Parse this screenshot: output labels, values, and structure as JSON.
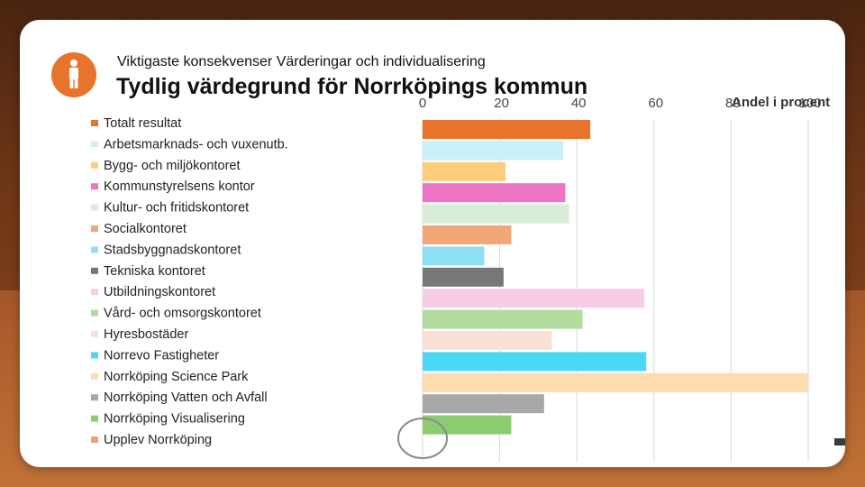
{
  "header": {
    "subtitle": "Viktigaste konsekvenser Värderingar och individualisering",
    "title": "Tydlig värdegrund för Norrköpings kommun"
  },
  "icons": {
    "badge": "person-icon"
  },
  "colors": {
    "badge": "#e8732a",
    "background": "#7a3d18"
  },
  "chart_data": {
    "type": "bar",
    "orientation": "horizontal",
    "title": "Tydlig värdegrund för Norrköpings kommun",
    "xlabel": "Andel i procent",
    "xlim": [
      0,
      100
    ],
    "ticks": [
      "0",
      "20",
      "40",
      "60",
      "80",
      "100"
    ],
    "grid": true,
    "legend_position": "left",
    "categories": [
      "Totalt resultat",
      "Arbetsmarknads- och vuxenutb.",
      "Bygg- och miljökontoret",
      "Kommunstyrelsens kontor",
      "Kultur- och fritidskontoret",
      "Socialkontoret",
      "Stadsbyggnadskontoret",
      "Tekniska kontoret",
      "Utbildningskontoret",
      "Vård- och omsorgskontoret",
      "Hyresbostäder",
      "Norrevo Fastigheter",
      "Norrköping Science Park",
      "Norrköping Vatten och Avfall",
      "Norrköping Visualisering",
      "Upplev Norrköping"
    ],
    "values": [
      43.5,
      36.5,
      21.5,
      37,
      38,
      23,
      16,
      21,
      57.5,
      41.5,
      33.5,
      58,
      100,
      31.5,
      23,
      0
    ],
    "colors": [
      "#e8732a",
      "#c9f0f8",
      "#fccd7a",
      "#ec74c2",
      "#d8ecd8",
      "#f0a87a",
      "#8ee0f4",
      "#777777",
      "#f6cde4",
      "#b2dca0",
      "#fbe0d4",
      "#4ad8f4",
      "#fdddb0",
      "#a8a8a8",
      "#8ccc70",
      "#f0a078"
    ]
  }
}
